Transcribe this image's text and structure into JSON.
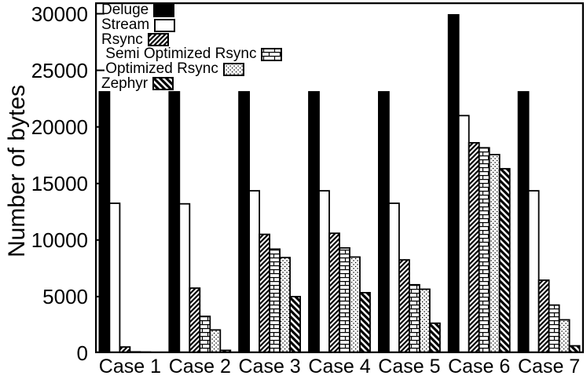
{
  "figure": {
    "background": "#ffffff",
    "axis_color": "#000000",
    "bar_fill_dark": "#000000",
    "bar_fill_light": "#ffffff"
  },
  "chart_data": {
    "type": "bar",
    "title": "",
    "ylabel": "Number of bytes",
    "xlabel": "",
    "ylim": [
      0,
      30000
    ],
    "yticks": [
      0,
      5000,
      10000,
      15000,
      20000,
      25000,
      30000
    ],
    "ytick_labels": [
      "0",
      "5000",
      "10000",
      "15000",
      "20000",
      "25000",
      "30000"
    ],
    "grid": "off",
    "legend_position": "top-left-inside",
    "categories": [
      "Case 1",
      "Case 2",
      "Case 3",
      "Case 4",
      "Case 5",
      "Case 6",
      "Case 7"
    ],
    "series": [
      {
        "name": "Deluge",
        "pattern": "solid-black",
        "values": [
          23100,
          23100,
          23100,
          23100,
          23100,
          29900,
          23100
        ]
      },
      {
        "name": "Stream",
        "pattern": "white",
        "values": [
          13250,
          13200,
          14350,
          14350,
          13250,
          21000,
          14350
        ]
      },
      {
        "name": "Rsync",
        "pattern": "diagonal-forward-hatch",
        "values": [
          550,
          5750,
          10500,
          10600,
          8250,
          18600,
          6450
        ]
      },
      {
        "name": " Semi Optimized Rsync",
        "pattern": "brick",
        "values": [
          120,
          3250,
          9200,
          9300,
          6050,
          18150,
          4250
        ]
      },
      {
        "name": " Optimized Rsync",
        "pattern": "dots",
        "values": [
          100,
          2050,
          8450,
          8500,
          5650,
          17550,
          2950
        ]
      },
      {
        "name": "Zephyr",
        "pattern": "diagonal-back-hatch",
        "values": [
          30,
          250,
          5000,
          5350,
          2650,
          16300,
          650
        ]
      }
    ]
  }
}
